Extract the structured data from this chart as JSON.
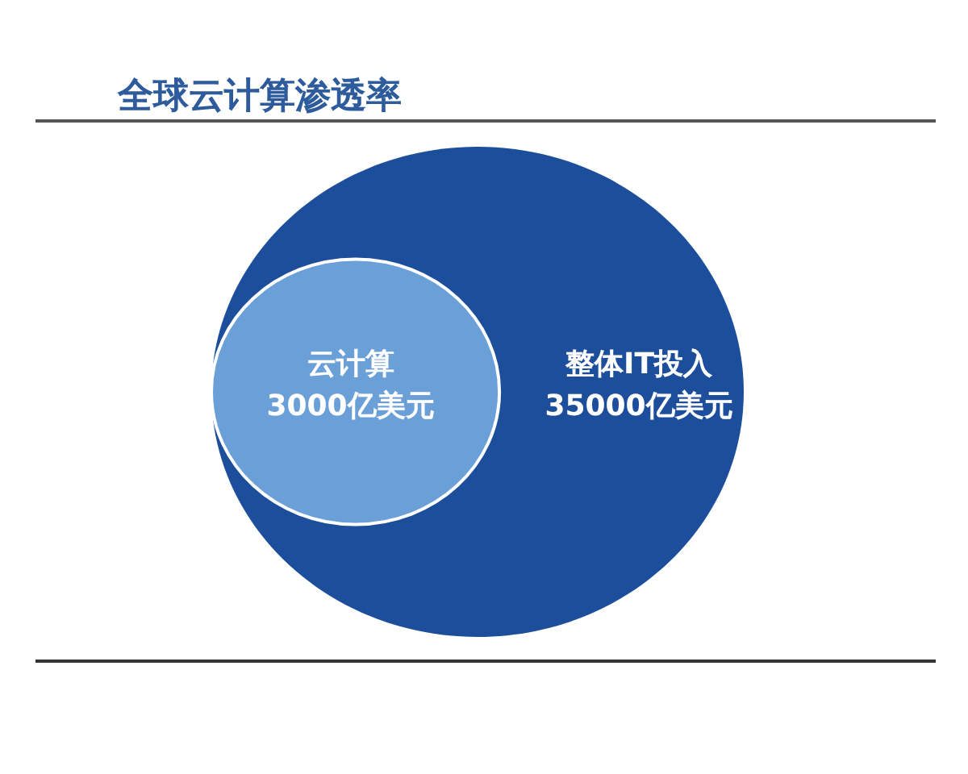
{
  "chart_data": {
    "type": "other",
    "title": "全球云计算渗透率",
    "categories": [
      "云计算",
      "整体IT投入"
    ],
    "values": [
      3000,
      35000
    ],
    "value_labels": [
      "3000亿美元",
      "35000亿美元"
    ],
    "colors": [
      "#6a9fd8",
      "#1d4e9b"
    ]
  }
}
